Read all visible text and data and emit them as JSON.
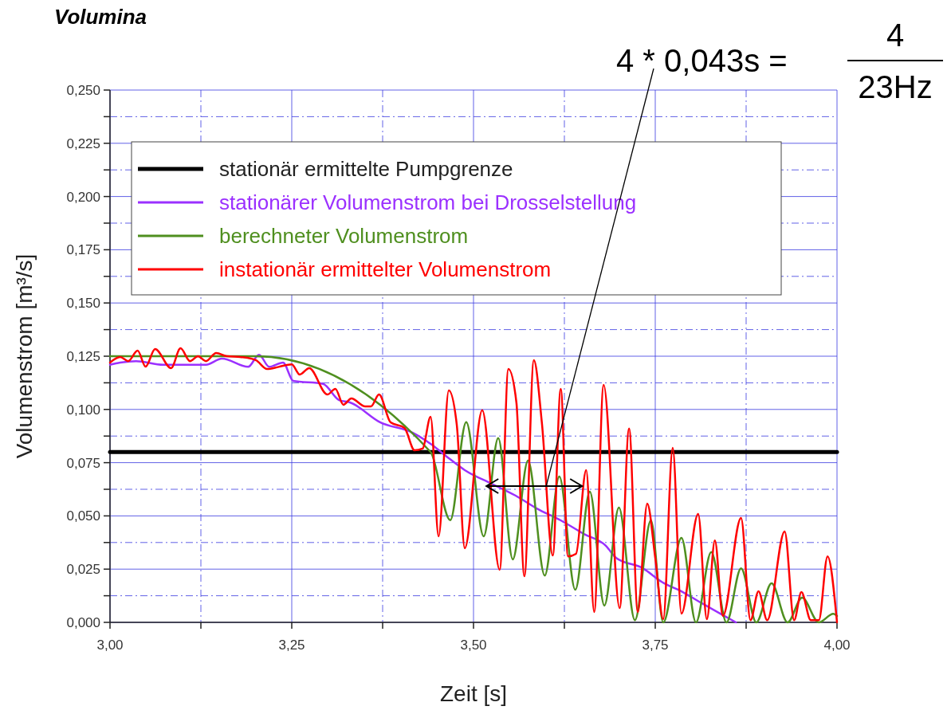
{
  "chart_data": {
    "type": "line",
    "title": "Volumina",
    "xlabel": "Zeit [s]",
    "ylabel": "Volumenstrom [m³/s]",
    "xlim": [
      3,
      4
    ],
    "ylim": [
      0,
      0.25
    ],
    "xticks": [
      {
        "value": 3,
        "label": "3,00"
      },
      {
        "value": 3.125,
        "label": null
      },
      {
        "value": 3.25,
        "label": "3,25"
      },
      {
        "value": 3.375,
        "label": null
      },
      {
        "value": 3.5,
        "label": "3,50"
      },
      {
        "value": 3.625,
        "label": null
      },
      {
        "value": 3.75,
        "label": "3,75"
      },
      {
        "value": 3.875,
        "label": null
      },
      {
        "value": 4,
        "label": "4,00"
      }
    ],
    "yticks": [
      {
        "value": 0,
        "label": "0,000"
      },
      {
        "value": 0.0125,
        "label": null
      },
      {
        "value": 0.025,
        "label": "0,025"
      },
      {
        "value": 0.0375,
        "label": null
      },
      {
        "value": 0.05,
        "label": "0,050"
      },
      {
        "value": 0.0625,
        "label": null
      },
      {
        "value": 0.075,
        "label": "0,075"
      },
      {
        "value": 0.0875,
        "label": null
      },
      {
        "value": 0.1,
        "label": "0,100"
      },
      {
        "value": 0.1125,
        "label": null
      },
      {
        "value": 0.125,
        "label": "0,125"
      },
      {
        "value": 0.1375,
        "label": null
      },
      {
        "value": 0.15,
        "label": "0,150"
      },
      {
        "value": 0.1625,
        "label": null
      },
      {
        "value": 0.175,
        "label": "0,175"
      },
      {
        "value": 0.1875,
        "label": null
      },
      {
        "value": 0.2,
        "label": "0,200"
      },
      {
        "value": 0.2125,
        "label": null
      },
      {
        "value": 0.225,
        "label": "0,225"
      },
      {
        "value": 0.2375,
        "label": null
      },
      {
        "value": 0.25,
        "label": "0,250"
      }
    ],
    "grid": true,
    "legend": "top left",
    "marker": "none",
    "line_style": "solid",
    "annotations": [
      {
        "text": "4 * 0,043s =",
        "x": 3.6,
        "y": 0.064
      },
      "4",
      "23Hz"
    ],
    "series": [
      {
        "name": "stationär ermittelte Pumpgrenze",
        "color": "#000000",
        "x": [
          3,
          4
        ],
        "values": [
          0.08,
          0.08
        ]
      },
      {
        "name": "stationärer Volumenstrom bei Drosselstellung",
        "color": "#9b30ff",
        "x": [
          3.0,
          3.014,
          3.036,
          3.073,
          3.099,
          3.132,
          3.154,
          3.19,
          3.205,
          3.219,
          3.238,
          3.252,
          3.293,
          3.315,
          3.33,
          3.372,
          3.416,
          3.441,
          3.466,
          3.488,
          3.525,
          3.558,
          3.587,
          3.62,
          3.652,
          3.682,
          3.696,
          3.733,
          3.759,
          3.788,
          3.814,
          3.843,
          3.861
        ],
        "values": [
          0.121,
          0.122,
          0.1227,
          0.121,
          0.121,
          0.121,
          0.1239,
          0.12,
          0.1257,
          0.12,
          0.122,
          0.1134,
          0.112,
          0.1044,
          0.1033,
          0.0939,
          0.0891,
          0.0838,
          0.0771,
          0.0715,
          0.0651,
          0.0595,
          0.0535,
          0.0479,
          0.0415,
          0.036,
          0.0303,
          0.0254,
          0.019,
          0.0142,
          0.009,
          0.0034,
          0.0
        ]
      },
      {
        "name": "berechneter Volumenstrom",
        "color": "#4f8f1f",
        "x": [
          3.0,
          3.2,
          3.441,
          3.468,
          3.49,
          3.514,
          3.534,
          3.554,
          3.575,
          3.598,
          3.618,
          3.64,
          3.66,
          3.68,
          3.7,
          3.722,
          3.744,
          3.761,
          3.786,
          3.806,
          3.827,
          3.848,
          3.868,
          3.889,
          3.91,
          3.932,
          3.952,
          3.975,
          3.995,
          4.0
        ],
        "values": [
          0.125,
          0.125,
          0.08,
          0.048,
          0.094,
          0.0404,
          0.0865,
          0.0296,
          0.076,
          0.022,
          0.0685,
          0.0153,
          0.0614,
          0.0079,
          0.0539,
          0.001,
          0.0479,
          0.0,
          0.0397,
          0.0,
          0.033,
          0.0,
          0.0254,
          0.0,
          0.0183,
          0.0,
          0.0116,
          0.0,
          0.004,
          0.003
        ]
      },
      {
        "name": "instationär ermittelter Volumenstrom",
        "color": "#ff0000",
        "x": [
          3.0,
          3.014,
          3.025,
          3.038,
          3.049,
          3.062,
          3.084,
          3.097,
          3.11,
          3.121,
          3.132,
          3.146,
          3.161,
          3.179,
          3.194,
          3.201,
          3.216,
          3.232,
          3.25,
          3.261,
          3.274,
          3.299,
          3.31,
          3.321,
          3.332,
          3.351,
          3.359,
          3.37,
          3.386,
          3.405,
          3.419,
          3.43,
          3.441,
          3.452,
          3.466,
          3.477,
          3.488,
          3.512,
          3.536,
          3.548,
          3.559,
          3.57,
          3.583,
          3.594,
          3.609,
          3.62,
          3.63,
          3.641,
          3.655,
          3.666,
          3.679,
          3.701,
          3.714,
          3.726,
          3.739,
          3.75,
          3.761,
          3.774,
          3.786,
          3.809,
          3.821,
          3.832,
          3.843,
          3.868,
          3.881,
          3.892,
          3.904,
          3.928,
          3.941,
          3.951,
          3.964,
          3.975,
          3.987,
          4.0
        ],
        "values": [
          0.122,
          0.1246,
          0.1227,
          0.1276,
          0.1201,
          0.1284,
          0.1194,
          0.1287,
          0.1227,
          0.125,
          0.1227,
          0.1265,
          0.125,
          0.1246,
          0.1239,
          0.1231,
          0.119,
          0.12,
          0.1212,
          0.1164,
          0.1194,
          0.107,
          0.1097,
          0.1022,
          0.1052,
          0.1014,
          0.1014,
          0.107,
          0.0939,
          0.0913,
          0.0808,
          0.0816,
          0.0966,
          0.0404,
          0.1089,
          0.0928,
          0.0348,
          0.0996,
          0.0247,
          0.119,
          0.1033,
          0.0217,
          0.1231,
          0.0939,
          0.0314,
          0.1097,
          0.031,
          0.0322,
          0.0715,
          0.0049,
          0.1115,
          0.0067,
          0.091,
          0.0049,
          0.0558,
          0.0303,
          0.0015,
          0.082,
          0.0041,
          0.0509,
          0.0015,
          0.0385,
          0.003,
          0.049,
          0.001,
          0.0146,
          0.001,
          0.0427,
          0.001,
          0.0142,
          0.001,
          0.001,
          0.031,
          0.0
        ]
      }
    ]
  }
}
